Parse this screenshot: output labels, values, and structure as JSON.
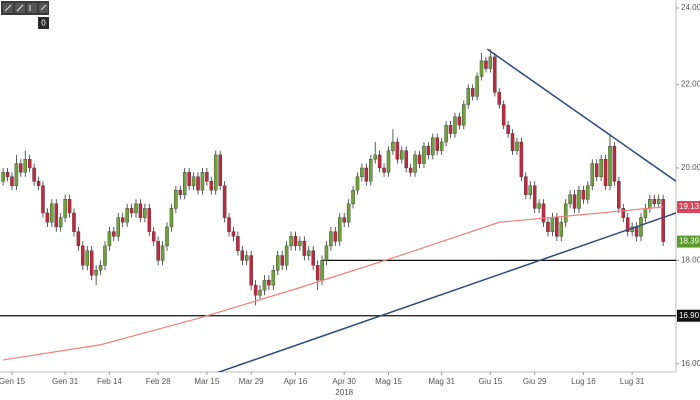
{
  "toolbar": {
    "badge": "0"
  },
  "chart_data": {
    "type": "candlestick",
    "year_label": "2018",
    "log_scale": true,
    "ylim": [
      15.85,
      24.22
    ],
    "xlim": [
      -0.7,
      151.9
    ],
    "yticks": [
      {
        "value": 16,
        "label": "16.00"
      },
      {
        "value": 18,
        "label": "18.00"
      },
      {
        "value": 20,
        "label": "20.00"
      },
      {
        "value": 22,
        "label": "22.00"
      },
      {
        "value": 24,
        "label": "24.00"
      }
    ],
    "xticks": [
      {
        "value": 2,
        "label": "Gen 15"
      },
      {
        "value": 14,
        "label": "Gen 31"
      },
      {
        "value": 24,
        "label": "Feb 14"
      },
      {
        "value": 35,
        "label": "Feb 28"
      },
      {
        "value": 46,
        "label": "Mar 15"
      },
      {
        "value": 56,
        "label": "Mar 29"
      },
      {
        "value": 66,
        "label": "Apr 16"
      },
      {
        "value": 77,
        "label": "Apr 30"
      },
      {
        "value": 87,
        "label": "Mag 15"
      },
      {
        "value": 99,
        "label": "Mag 31"
      },
      {
        "value": 110,
        "label": "Giu 15"
      },
      {
        "value": 120,
        "label": "Giu 29"
      },
      {
        "value": 131,
        "label": "Lug 16"
      },
      {
        "value": 142,
        "label": "Lug 31"
      }
    ],
    "up_color": "#6ea33a",
    "down_color": "#c2283e",
    "ohlc": [
      [
        19.7,
        20.0,
        19.6,
        19.9
      ],
      [
        19.9,
        20.0,
        19.7,
        19.8
      ],
      [
        19.8,
        19.9,
        19.5,
        19.6
      ],
      [
        19.6,
        20.3,
        19.5,
        20.1
      ],
      [
        20.1,
        20.2,
        19.8,
        19.9
      ],
      [
        19.9,
        20.4,
        19.8,
        20.2
      ],
      [
        20.2,
        20.3,
        19.9,
        20.0
      ],
      [
        20.0,
        20.1,
        19.6,
        19.7
      ],
      [
        19.7,
        19.8,
        19.5,
        19.6
      ],
      [
        19.6,
        19.7,
        18.9,
        19.0
      ],
      [
        19.0,
        19.1,
        18.7,
        18.8
      ],
      [
        18.8,
        19.3,
        18.7,
        19.2
      ],
      [
        19.2,
        19.3,
        18.6,
        18.7
      ],
      [
        18.7,
        19.0,
        18.6,
        18.9
      ],
      [
        18.9,
        19.4,
        18.8,
        19.3
      ],
      [
        19.3,
        19.4,
        18.9,
        19.0
      ],
      [
        19.0,
        19.1,
        18.5,
        18.6
      ],
      [
        18.6,
        18.7,
        18.2,
        18.3
      ],
      [
        18.3,
        18.4,
        17.8,
        17.9
      ],
      [
        17.9,
        18.3,
        17.8,
        18.2
      ],
      [
        18.2,
        18.3,
        17.6,
        17.7
      ],
      [
        17.7,
        17.9,
        17.5,
        17.8
      ],
      [
        17.8,
        18.0,
        17.7,
        17.9
      ],
      [
        17.9,
        18.4,
        17.8,
        18.3
      ],
      [
        18.3,
        18.7,
        18.2,
        18.6
      ],
      [
        18.6,
        18.7,
        18.4,
        18.5
      ],
      [
        18.5,
        19.0,
        18.4,
        18.9
      ],
      [
        18.9,
        19.0,
        18.7,
        18.8
      ],
      [
        18.8,
        19.2,
        18.7,
        19.1
      ],
      [
        19.1,
        19.2,
        18.9,
        19.0
      ],
      [
        19.0,
        19.3,
        18.9,
        19.2
      ],
      [
        19.2,
        19.3,
        18.8,
        18.9
      ],
      [
        18.9,
        19.2,
        18.8,
        19.1
      ],
      [
        19.1,
        19.2,
        18.5,
        18.6
      ],
      [
        18.6,
        18.7,
        18.3,
        18.4
      ],
      [
        18.4,
        18.5,
        17.9,
        18.0
      ],
      [
        18.0,
        18.4,
        17.9,
        18.3
      ],
      [
        18.3,
        18.8,
        18.2,
        18.7
      ],
      [
        18.7,
        19.2,
        18.6,
        19.1
      ],
      [
        19.1,
        19.6,
        19.0,
        19.5
      ],
      [
        19.5,
        19.6,
        19.3,
        19.4
      ],
      [
        19.4,
        20.0,
        19.3,
        19.9
      ],
      [
        19.9,
        20.0,
        19.5,
        19.6
      ],
      [
        19.6,
        19.9,
        19.5,
        19.8
      ],
      [
        19.8,
        19.9,
        19.4,
        19.5
      ],
      [
        19.5,
        20.0,
        19.4,
        19.9
      ],
      [
        19.9,
        20.0,
        19.6,
        19.7
      ],
      [
        19.7,
        19.8,
        19.4,
        19.5
      ],
      [
        19.5,
        20.4,
        19.4,
        20.3
      ],
      [
        20.3,
        20.4,
        19.5,
        19.6
      ],
      [
        19.6,
        19.7,
        18.8,
        18.9
      ],
      [
        18.9,
        19.0,
        18.5,
        18.6
      ],
      [
        18.6,
        18.7,
        18.4,
        18.5
      ],
      [
        18.5,
        18.6,
        18.1,
        18.2
      ],
      [
        18.2,
        18.3,
        17.9,
        18.0
      ],
      [
        18.0,
        18.2,
        17.9,
        18.1
      ],
      [
        18.1,
        18.2,
        17.4,
        17.5
      ],
      [
        17.5,
        17.6,
        17.1,
        17.3
      ],
      [
        17.3,
        17.5,
        17.2,
        17.4
      ],
      [
        17.4,
        17.7,
        17.3,
        17.6
      ],
      [
        17.6,
        17.7,
        17.4,
        17.5
      ],
      [
        17.5,
        17.9,
        17.4,
        17.8
      ],
      [
        17.8,
        18.2,
        17.7,
        18.1
      ],
      [
        18.1,
        18.2,
        17.8,
        17.9
      ],
      [
        17.9,
        18.4,
        17.8,
        18.3
      ],
      [
        18.3,
        18.6,
        18.2,
        18.5
      ],
      [
        18.5,
        18.6,
        18.2,
        18.3
      ],
      [
        18.3,
        18.5,
        18.2,
        18.4
      ],
      [
        18.4,
        18.5,
        18.0,
        18.1
      ],
      [
        18.1,
        18.3,
        18.0,
        18.2
      ],
      [
        18.2,
        18.3,
        17.8,
        17.9
      ],
      [
        17.9,
        18.0,
        17.4,
        17.6
      ],
      [
        17.6,
        18.1,
        17.5,
        18.0
      ],
      [
        18.0,
        18.4,
        17.9,
        18.3
      ],
      [
        18.3,
        18.7,
        18.2,
        18.6
      ],
      [
        18.6,
        18.7,
        18.3,
        18.4
      ],
      [
        18.4,
        19.0,
        18.3,
        18.9
      ],
      [
        18.9,
        19.0,
        18.7,
        18.8
      ],
      [
        18.8,
        19.3,
        18.7,
        19.2
      ],
      [
        19.2,
        19.6,
        19.1,
        19.5
      ],
      [
        19.5,
        19.9,
        19.4,
        19.8
      ],
      [
        19.8,
        20.1,
        19.7,
        20.0
      ],
      [
        20.0,
        20.1,
        19.6,
        19.7
      ],
      [
        19.7,
        20.3,
        19.6,
        20.2
      ],
      [
        20.2,
        20.6,
        20.1,
        20.3
      ],
      [
        20.3,
        20.4,
        19.9,
        20.0
      ],
      [
        20.0,
        20.1,
        19.8,
        19.9
      ],
      [
        19.9,
        20.5,
        19.8,
        20.4
      ],
      [
        20.4,
        20.9,
        20.3,
        20.6
      ],
      [
        20.6,
        20.7,
        20.1,
        20.2
      ],
      [
        20.2,
        20.5,
        20.1,
        20.4
      ],
      [
        20.4,
        20.5,
        19.9,
        20.0
      ],
      [
        20.0,
        20.1,
        19.8,
        19.9
      ],
      [
        19.9,
        20.4,
        19.8,
        20.3
      ],
      [
        20.3,
        20.4,
        20.0,
        20.1
      ],
      [
        20.1,
        20.6,
        20.0,
        20.5
      ],
      [
        20.5,
        20.6,
        20.2,
        20.3
      ],
      [
        20.3,
        20.8,
        20.2,
        20.7
      ],
      [
        20.7,
        20.8,
        20.3,
        20.4
      ],
      [
        20.4,
        20.7,
        20.3,
        20.6
      ],
      [
        20.6,
        21.1,
        20.5,
        21.0
      ],
      [
        21.0,
        21.1,
        20.7,
        20.8
      ],
      [
        20.8,
        21.3,
        20.7,
        21.2
      ],
      [
        21.2,
        21.3,
        20.9,
        21.0
      ],
      [
        21.0,
        21.6,
        20.9,
        21.5
      ],
      [
        21.5,
        22.0,
        21.4,
        21.9
      ],
      [
        21.9,
        22.0,
        21.6,
        21.7
      ],
      [
        21.7,
        22.3,
        21.6,
        22.2
      ],
      [
        22.2,
        22.8,
        22.1,
        22.6
      ],
      [
        22.6,
        22.7,
        22.3,
        22.4
      ],
      [
        22.4,
        22.9,
        22.3,
        22.7
      ],
      [
        22.7,
        22.8,
        21.7,
        21.8
      ],
      [
        21.8,
        21.9,
        21.4,
        21.5
      ],
      [
        21.5,
        21.6,
        20.9,
        21.0
      ],
      [
        21.0,
        21.1,
        20.7,
        20.8
      ],
      [
        20.8,
        20.9,
        20.3,
        20.4
      ],
      [
        20.4,
        20.7,
        20.3,
        20.6
      ],
      [
        20.6,
        20.7,
        19.7,
        19.8
      ],
      [
        19.8,
        19.9,
        19.3,
        19.4
      ],
      [
        19.4,
        19.7,
        19.3,
        19.6
      ],
      [
        19.6,
        19.7,
        19.0,
        19.1
      ],
      [
        19.1,
        19.3,
        19.0,
        19.2
      ],
      [
        19.2,
        19.3,
        18.7,
        18.8
      ],
      [
        18.8,
        18.9,
        18.5,
        18.6
      ],
      [
        18.6,
        19.0,
        18.5,
        18.9
      ],
      [
        18.9,
        19.0,
        18.4,
        18.5
      ],
      [
        18.5,
        18.9,
        18.4,
        18.8
      ],
      [
        18.8,
        19.3,
        18.7,
        19.2
      ],
      [
        19.2,
        19.5,
        19.1,
        19.4
      ],
      [
        19.4,
        19.5,
        19.0,
        19.1
      ],
      [
        19.1,
        19.6,
        19.0,
        19.5
      ],
      [
        19.5,
        19.6,
        19.2,
        19.3
      ],
      [
        19.3,
        19.7,
        19.2,
        19.6
      ],
      [
        19.6,
        20.2,
        19.5,
        20.1
      ],
      [
        20.1,
        20.2,
        19.7,
        19.8
      ],
      [
        19.8,
        20.3,
        19.7,
        20.2
      ],
      [
        20.2,
        20.3,
        19.5,
        19.6
      ],
      [
        19.6,
        20.8,
        19.5,
        20.5
      ],
      [
        20.5,
        20.6,
        19.6,
        19.7
      ],
      [
        19.7,
        19.8,
        19.0,
        19.1
      ],
      [
        19.1,
        19.2,
        18.8,
        18.9
      ],
      [
        18.9,
        19.0,
        18.5,
        18.6
      ],
      [
        18.6,
        18.8,
        18.5,
        18.7
      ],
      [
        18.7,
        18.8,
        18.4,
        18.5
      ],
      [
        18.5,
        19.0,
        18.4,
        18.9
      ],
      [
        18.9,
        19.2,
        18.8,
        19.1
      ],
      [
        19.1,
        19.4,
        19.0,
        19.3
      ],
      [
        19.3,
        19.4,
        19.1,
        19.2
      ],
      [
        19.2,
        19.4,
        19.1,
        19.3
      ],
      [
        19.3,
        19.4,
        18.3,
        18.39
      ]
    ],
    "moving_average": {
      "color": "#f08080",
      "points": [
        [
          0,
          16.07
        ],
        [
          22,
          16.35
        ],
        [
          44.5,
          16.86
        ],
        [
          67,
          17.45
        ],
        [
          89.6,
          18.1
        ],
        [
          112,
          18.8
        ],
        [
          134.8,
          19.0
        ],
        [
          149,
          19.13
        ]
      ]
    },
    "trendlines": [
      {
        "color": "#2e4a7a",
        "start": [
          109.3,
          22.9
        ],
        "end": [
          151.9,
          19.7
        ]
      },
      {
        "color": "#2e4a7a",
        "start": [
          28.7,
          15.3
        ],
        "end": [
          151.9,
          19.0
        ]
      }
    ],
    "levels": [
      {
        "value": 18,
        "from": 72
      },
      {
        "value": 16.9,
        "from": -0.7
      }
    ],
    "price_tags": [
      {
        "value": 19.13,
        "label": "19.13",
        "color": "#d9455a"
      },
      {
        "value": 18.39,
        "label": "18.39",
        "color": "#5c9a2a"
      },
      {
        "value": 16.9,
        "label": "16.90",
        "color": "#111111"
      }
    ]
  }
}
